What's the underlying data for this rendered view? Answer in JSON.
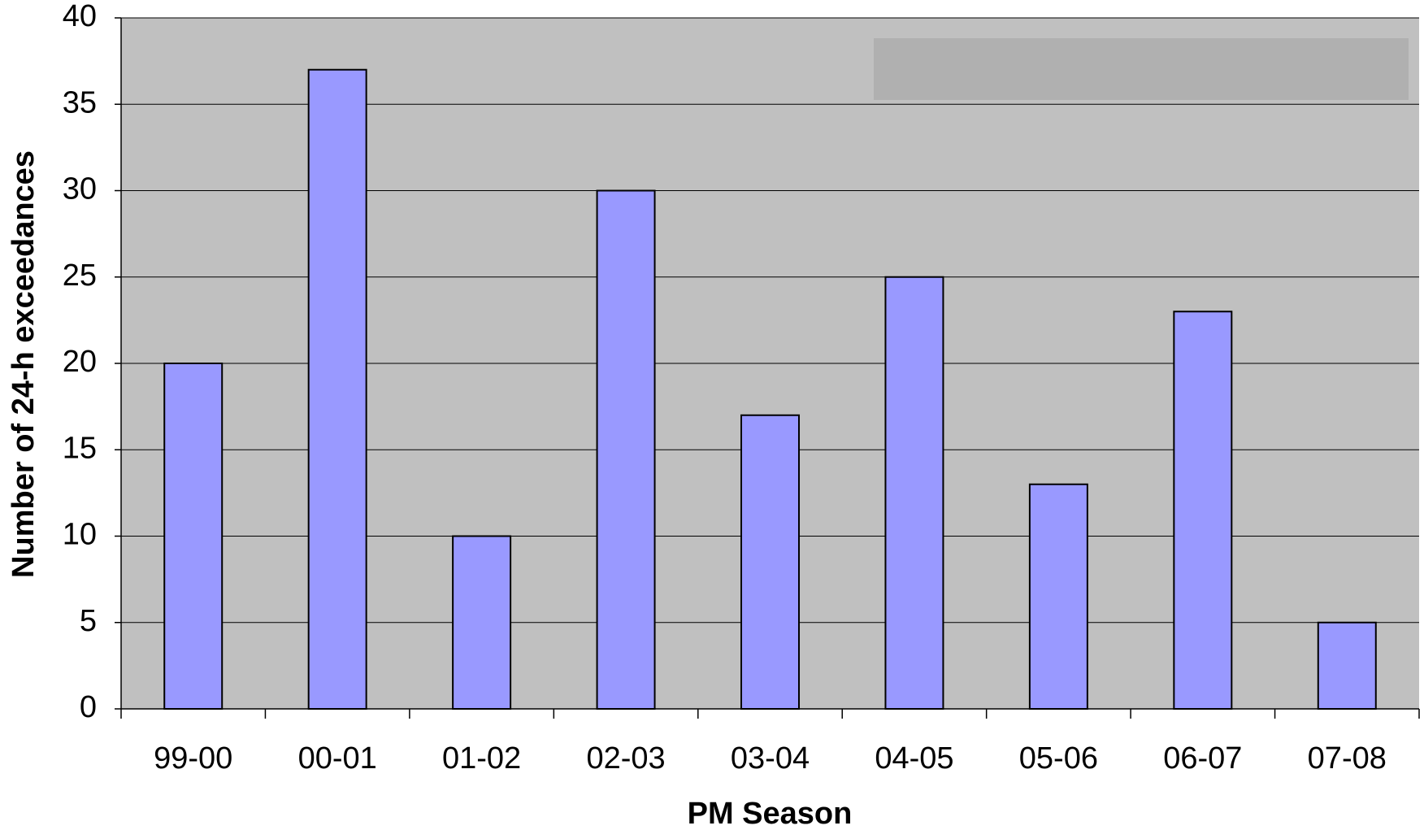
{
  "chart_data": {
    "type": "bar",
    "x_label": "PM Season",
    "y_label": "Number of 24-h exceedances",
    "categories": [
      "99-00",
      "00-01",
      "01-02",
      "02-03",
      "03-04",
      "04-05",
      "05-06",
      "06-07",
      "07-08"
    ],
    "values": [
      20,
      37,
      10,
      30,
      17,
      25,
      13,
      23,
      5
    ],
    "color": "#9999ff",
    "ylim": [
      0,
      40
    ],
    "yticks": [
      0,
      5,
      10,
      15,
      20,
      25,
      30,
      35,
      40
    ],
    "grid": true
  }
}
